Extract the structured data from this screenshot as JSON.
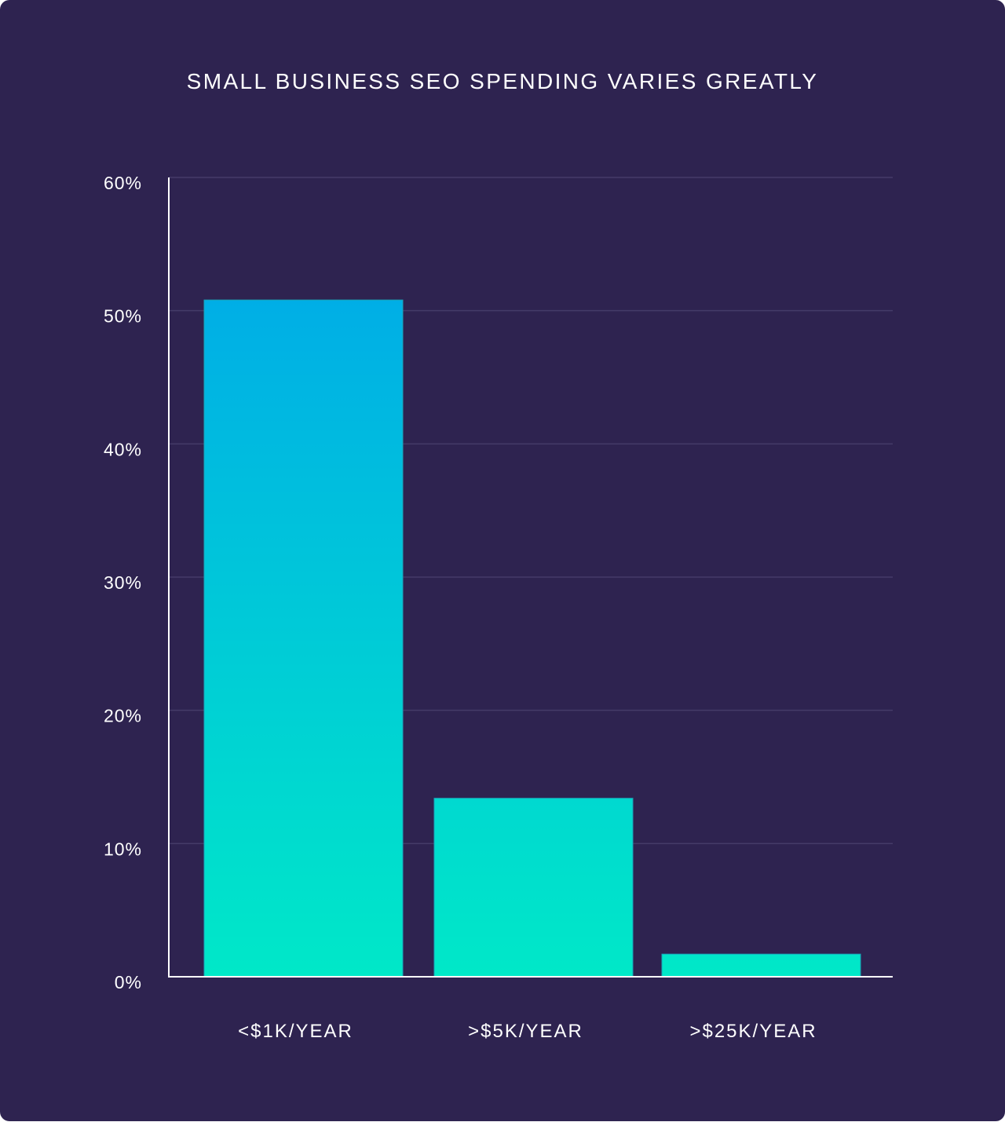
{
  "chart_data": {
    "type": "bar",
    "title": "SMALL BUSINESS SEO SPENDING VARIES GREATLY",
    "categories": [
      "<$1K/YEAR",
      ">$5K/YEAR",
      ">$25K/YEAR"
    ],
    "values": [
      50.8,
      13.4,
      1.7
    ],
    "unit": "%",
    "ylim": [
      0,
      60
    ],
    "yticks": [
      0,
      10,
      20,
      30,
      40,
      50,
      60
    ],
    "ytick_labels": [
      "0%",
      "10%",
      "20%",
      "30%",
      "40%",
      "50%",
      "60%"
    ],
    "xlabel": "",
    "ylabel": "",
    "grid": true,
    "colors": {
      "background": "#2e2350",
      "bar_top": "#00aee6",
      "bar_bottom": "#00e8c8",
      "grid": "#453b68",
      "axis": "#ffffff"
    }
  }
}
